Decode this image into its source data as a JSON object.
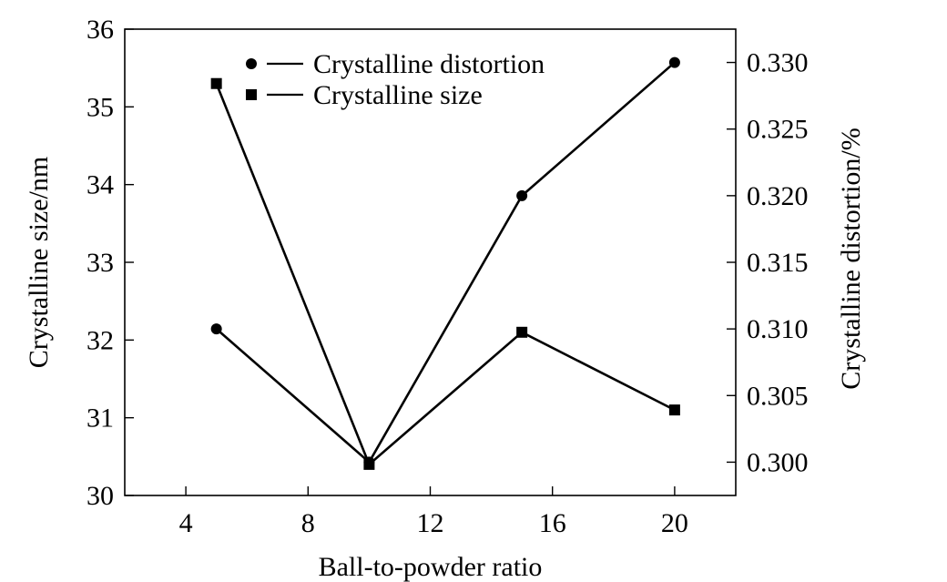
{
  "chart_data": {
    "type": "line",
    "title": "",
    "xlabel": "Ball-to-powder ratio",
    "ylabel_left": "Crystalline size/nm",
    "ylabel_right": "Crystalline distortion/%",
    "xlim": [
      2,
      22
    ],
    "ylim_left": [
      30,
      36
    ],
    "ylim_right": [
      0.2975,
      0.3325
    ],
    "x_ticks": [
      4,
      8,
      12,
      16,
      20
    ],
    "x_tick_labels": [
      "4",
      "8",
      "12",
      "16",
      "20"
    ],
    "y_left_ticks": [
      30,
      31,
      32,
      33,
      34,
      35,
      36
    ],
    "y_left_tick_labels": [
      "30",
      "31",
      "32",
      "33",
      "34",
      "35",
      "36"
    ],
    "y_right_ticks": [
      0.3,
      0.305,
      0.31,
      0.315,
      0.32,
      0.325,
      0.33
    ],
    "y_right_tick_labels": [
      "0.300",
      "0.305",
      "0.310",
      "0.315",
      "0.320",
      "0.325",
      "0.330"
    ],
    "grid": false,
    "legend_position": "top-center",
    "series": [
      {
        "name": "Crystalline distortion",
        "axis": "right",
        "marker": "circle",
        "color": "#000000",
        "x": [
          5,
          10,
          15,
          20
        ],
        "y": [
          0.31,
          0.3,
          0.32,
          0.33
        ]
      },
      {
        "name": "Crystalline size",
        "axis": "left",
        "marker": "square",
        "color": "#000000",
        "x": [
          5,
          10,
          15,
          20
        ],
        "y": [
          35.3,
          30.4,
          32.1,
          31.1
        ]
      }
    ]
  }
}
